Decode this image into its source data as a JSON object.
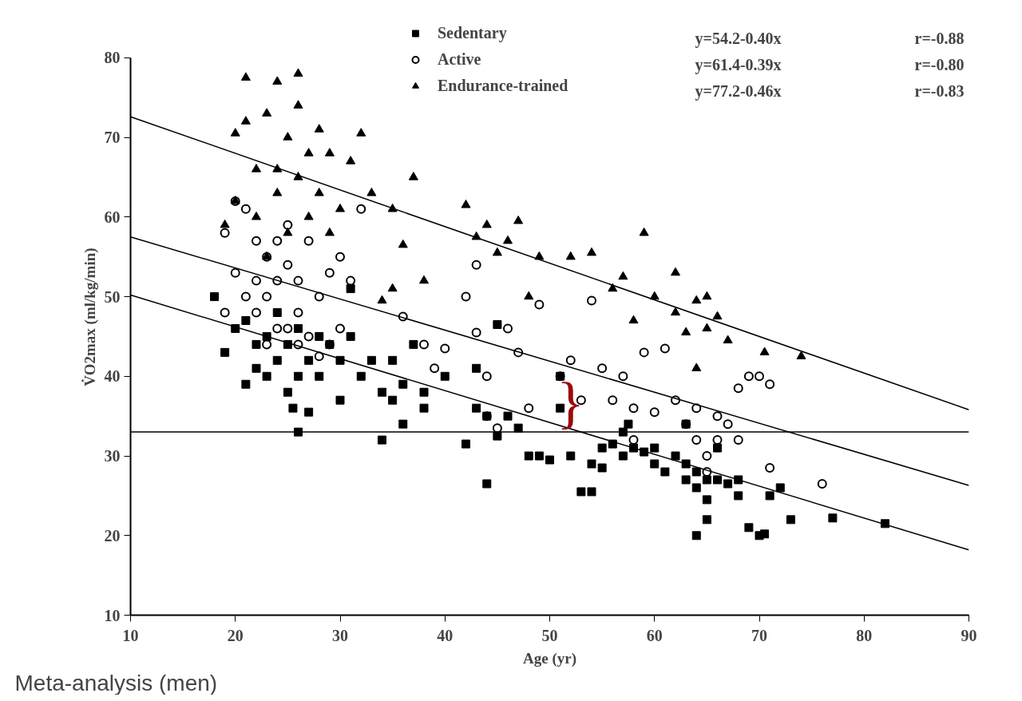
{
  "chart_data": {
    "type": "scatter",
    "xlabel": "Age (yr)",
    "ylabel": "V̇O2max (ml/kg/min)",
    "xlim": [
      10,
      90
    ],
    "ylim": [
      10,
      80
    ],
    "xticks": [
      10,
      20,
      30,
      40,
      50,
      60,
      70,
      80,
      90
    ],
    "yticks": [
      10,
      20,
      30,
      40,
      50,
      60,
      70,
      80
    ],
    "grid": false,
    "legend": "top",
    "series": [
      {
        "name": "Sedentary",
        "marker": "square",
        "color": "#000000",
        "x": [
          18,
          19,
          20,
          21,
          21,
          22,
          22,
          23,
          23,
          24,
          24,
          25,
          25,
          25.5,
          26,
          26,
          26,
          27,
          27,
          28,
          28,
          29,
          30,
          30,
          31,
          31,
          32,
          33,
          34,
          34,
          35,
          35,
          36,
          36,
          37,
          38,
          38,
          40,
          42,
          43,
          43,
          44,
          44,
          45,
          45,
          46,
          47,
          48,
          49,
          50,
          51,
          51,
          52,
          53,
          54,
          54,
          55,
          55,
          56,
          57,
          57,
          58,
          59,
          60,
          60,
          61,
          62,
          63,
          63,
          64,
          64,
          64,
          65,
          65,
          65,
          66,
          66,
          67,
          68,
          68,
          69,
          70,
          70.5,
          71,
          72,
          73,
          77,
          82,
          57.5,
          63
        ],
        "values": [
          50,
          43,
          46,
          47,
          39,
          41,
          44,
          40,
          45,
          42,
          48,
          38,
          44,
          36,
          33,
          40,
          46,
          42,
          35.5,
          40,
          45,
          44,
          37,
          42,
          51,
          45,
          40,
          42,
          32,
          38,
          42,
          37,
          34,
          39,
          44,
          36,
          38,
          40,
          31.5,
          36,
          41,
          26.5,
          35,
          32.5,
          46.5,
          35,
          33.5,
          30,
          30,
          29.5,
          40,
          36,
          30,
          25.5,
          29,
          25.5,
          31,
          28.5,
          31.5,
          30,
          33,
          31,
          30.5,
          29,
          31,
          28,
          30,
          29,
          27,
          28,
          20,
          26,
          22,
          24.5,
          27,
          27,
          31,
          26.5,
          27,
          25,
          21,
          20,
          20.2,
          25,
          26,
          22,
          22.2,
          21.5,
          34,
          34
        ]
      },
      {
        "name": "Active",
        "marker": "circle",
        "color": "#000000",
        "x": [
          19,
          19,
          20,
          20,
          21,
          21,
          22,
          22,
          22,
          23,
          23,
          23,
          24,
          24,
          24,
          25,
          25,
          25,
          26,
          26,
          26,
          27,
          27,
          28,
          28,
          29,
          29,
          30,
          30,
          31,
          32,
          36,
          38,
          39,
          40,
          42,
          43,
          43,
          44,
          44,
          45,
          46,
          47,
          48,
          49,
          51,
          52,
          53,
          54,
          55,
          56,
          57,
          58,
          59,
          60,
          61,
          62,
          63,
          64,
          64,
          65,
          66,
          66,
          67,
          68,
          68,
          69,
          70,
          71,
          71,
          76,
          65,
          58
        ],
        "values": [
          48,
          58,
          53,
          62,
          50,
          61,
          48,
          52,
          57,
          44,
          50,
          55,
          46,
          52,
          57,
          46,
          54,
          59,
          44,
          48,
          52,
          45,
          57,
          42.5,
          50,
          44,
          53,
          46,
          55,
          52,
          61,
          47.5,
          44,
          41,
          43.5,
          50,
          54,
          45.5,
          40,
          35,
          33.5,
          46,
          43,
          36,
          49,
          40,
          42,
          37,
          49.5,
          41,
          37,
          40,
          36,
          43,
          35.5,
          43.5,
          37,
          34,
          36,
          32,
          30,
          35,
          32,
          34,
          32,
          38.5,
          40,
          40,
          39,
          28.5,
          26.5,
          28,
          32
        ]
      },
      {
        "name": "Endurance-trained",
        "marker": "triangle",
        "color": "#000000",
        "x": [
          19,
          20,
          20,
          21,
          21,
          22,
          22,
          23,
          23,
          24,
          24,
          24,
          25,
          25,
          26,
          26,
          26,
          27,
          27,
          28,
          28,
          29,
          29,
          30,
          31,
          32,
          33,
          35,
          36,
          37,
          38,
          42,
          43,
          44,
          45,
          46,
          47,
          48,
          49,
          52,
          54,
          56,
          57,
          58,
          59,
          60,
          62,
          62,
          63,
          64,
          64,
          65,
          65,
          66,
          67,
          70.5,
          74,
          35,
          34
        ],
        "values": [
          59,
          70.5,
          62,
          77.5,
          72,
          66,
          60,
          73,
          55,
          77,
          66,
          63,
          70,
          58,
          78,
          74,
          65,
          68,
          60,
          71,
          63,
          58,
          68,
          61,
          67,
          70.5,
          63,
          61,
          56.5,
          65,
          52,
          61.5,
          57.5,
          59,
          55.5,
          57,
          59.5,
          50,
          55,
          55,
          55.5,
          51,
          52.5,
          47,
          58,
          50,
          53,
          48,
          45.5,
          49.5,
          41,
          46,
          50,
          47.5,
          44.5,
          43,
          42.5,
          51,
          49.5
        ]
      },
      {
        "type": "line",
        "color": "#000000",
        "x": [
          10,
          90
        ],
        "values": [
          50.2,
          18.2
        ]
      },
      {
        "type": "line",
        "color": "#000000",
        "x": [
          10,
          90
        ],
        "values": [
          57.5,
          26.3
        ]
      },
      {
        "type": "line",
        "color": "#000000",
        "x": [
          10,
          90
        ],
        "values": [
          72.6,
          35.8
        ]
      }
    ],
    "ref_lines": [
      {
        "axis": "y",
        "value": 33,
        "color": "#000000"
      }
    ],
    "annotations": [
      "y=54.2-0.40x",
      "r=-0.88",
      "y=61.4-0.39x",
      "r=-0.80",
      "y=77.2-0.46x",
      "r=-0.83",
      "Meta-analysis (men)",
      "}"
    ]
  }
}
